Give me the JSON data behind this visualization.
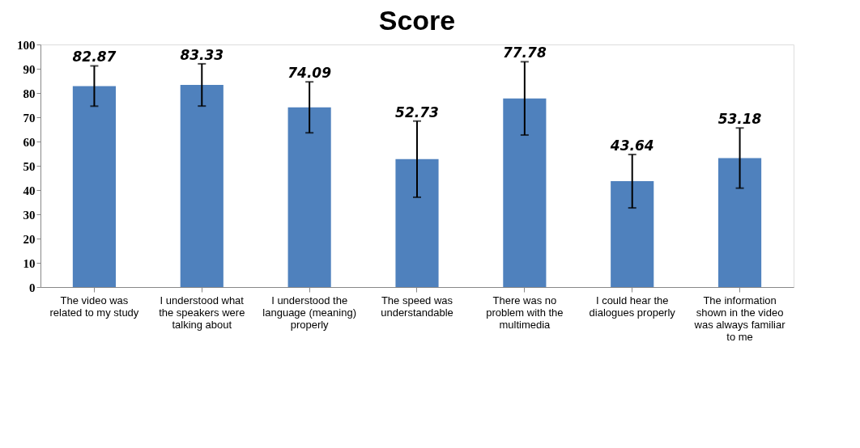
{
  "chart_data": {
    "type": "bar",
    "title": "Score",
    "categories": [
      "The video was related to my study",
      "I understood what the speakers were talking about",
      "I understood the language (meaning) properly",
      "The speed was understandable",
      "There was no problem with the multimedia",
      "I could hear the dialogues properly",
      "The information shown in the video was always familiar to me"
    ],
    "values": [
      82.87,
      83.33,
      74.09,
      52.73,
      77.78,
      43.64,
      53.18
    ],
    "errors": [
      8.3,
      8.7,
      10.5,
      15.7,
      15.1,
      11,
      12.4
    ],
    "color": "#4f81bd",
    "ylim": [
      0,
      100
    ],
    "yticks": [
      0,
      10,
      20,
      30,
      40,
      50,
      60,
      70,
      80,
      90,
      100
    ],
    "grid": false,
    "data_labels": true
  }
}
